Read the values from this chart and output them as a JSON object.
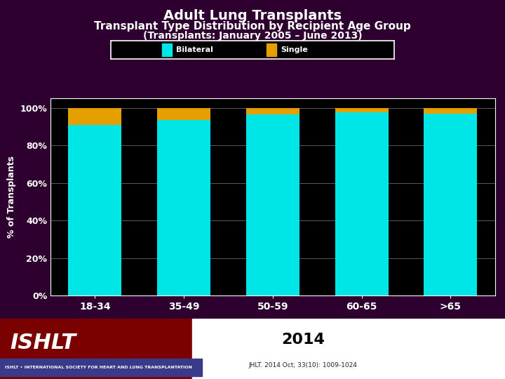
{
  "categories": [
    "18-34",
    "35-49",
    "50-59",
    "60-65",
    ">65"
  ],
  "bilateral_values": [
    91.0,
    93.5,
    96.5,
    97.5,
    97.0
  ],
  "single_values": [
    9.0,
    6.5,
    3.5,
    2.5,
    3.0
  ],
  "bilateral_color": "#00E5E5",
  "single_color": "#E5A000",
  "background_color": "#2D0030",
  "plot_bg_color": "#000000",
  "title_line1": "Adult Lung Transplants",
  "title_line2": "Transplant Type Distribution by Recipient Age Group",
  "title_line3": "(Transplants: January 2005 – June 2013)",
  "ylabel": "% of Transplants",
  "yticks": [
    0,
    20,
    40,
    60,
    80,
    100
  ],
  "ytick_labels": [
    "0%",
    "20%",
    "40%",
    "60%",
    "80%",
    "100%"
  ],
  "legend_labels": [
    "Bilateral",
    "Single"
  ],
  "legend_bg": "#000000",
  "title_color": "#ffffff",
  "axis_color": "#ffffff",
  "grid_color": "#ffffff",
  "bar_width": 0.6,
  "footer_text": "2014",
  "footer_sub": "JHLT. 2014 Oct; 33(10): 1009-1024",
  "footer_bg": "#7B0000",
  "footer_banner_color": "#3A3A8A",
  "footer_white_bg": "#ffffff"
}
